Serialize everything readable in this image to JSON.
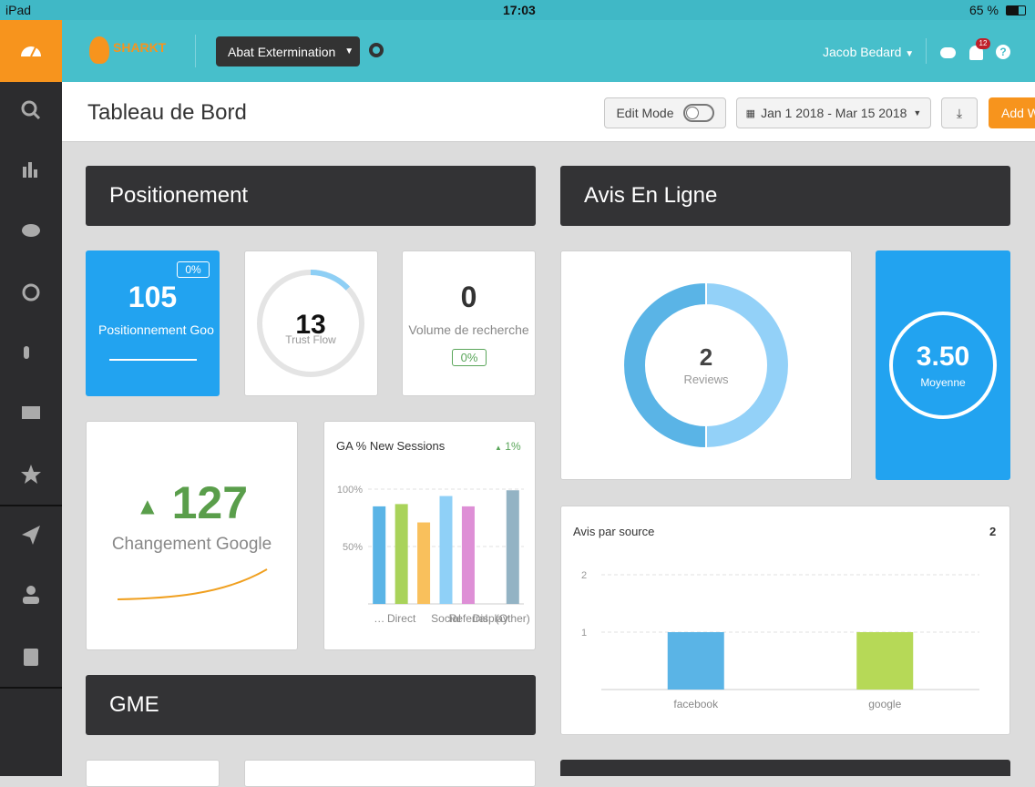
{
  "status_bar": {
    "device": "iPad",
    "time": "17:03",
    "battery": "65 %"
  },
  "header": {
    "brand": "SHARKT",
    "account": "Abat Extermination",
    "user": "Jacob Bedard",
    "notifications": "12"
  },
  "toolbar": {
    "title": "Tableau de Bord",
    "edit_mode": "Edit Mode",
    "date_range": "Jan 1 2018 - Mar 15 2018",
    "add": "Add W"
  },
  "sections": {
    "positionement": "Positionement",
    "avis": "Avis En Ligne",
    "gme": "GME"
  },
  "position_card": {
    "value": "105",
    "label": "Positionnement Goo",
    "change": "0%"
  },
  "trust_flow": {
    "value": 13,
    "label": "Trust Flow",
    "range": [
      0,
      100
    ]
  },
  "volume_card": {
    "value": "0",
    "label": "Volume de recherche",
    "change": "0%"
  },
  "changement_card": {
    "value": "127",
    "label": "Changement Google"
  },
  "ga_chart": {
    "type": "bar",
    "title": "GA % New Sessions",
    "change": "1%",
    "categories": [
      "…",
      "Direct",
      null,
      "Social",
      "Referral",
      "Display",
      "(Other)"
    ],
    "values": [
      85,
      87,
      71,
      94,
      85,
      null,
      99
    ],
    "colors": [
      "#5ab4e6",
      "#a9d35a",
      "#f9c05c",
      "#8fd0f7",
      "#de8fd6",
      "#9a9a9a",
      "#93b3c4"
    ],
    "ylim": [
      0,
      100
    ],
    "yticks": [
      {
        "value": 50,
        "label": "50%"
      },
      {
        "value": 100,
        "label": "100%"
      }
    ],
    "grid": true
  },
  "reviews_donut": {
    "value": "2",
    "label": "Reviews",
    "colors": [
      "#5ab4e6",
      "#93d1f8"
    ]
  },
  "moyenne_card": {
    "value": "3.50",
    "label": "Moyenne"
  },
  "avis_source": {
    "type": "bar",
    "title": "Avis par source",
    "total": "2",
    "categories": [
      "facebook",
      "google"
    ],
    "values": [
      1,
      1
    ],
    "colors": [
      "#5ab4e6",
      "#b6d957"
    ],
    "ylim": [
      0,
      2
    ],
    "yticks": [
      1,
      2
    ],
    "grid": true
  }
}
